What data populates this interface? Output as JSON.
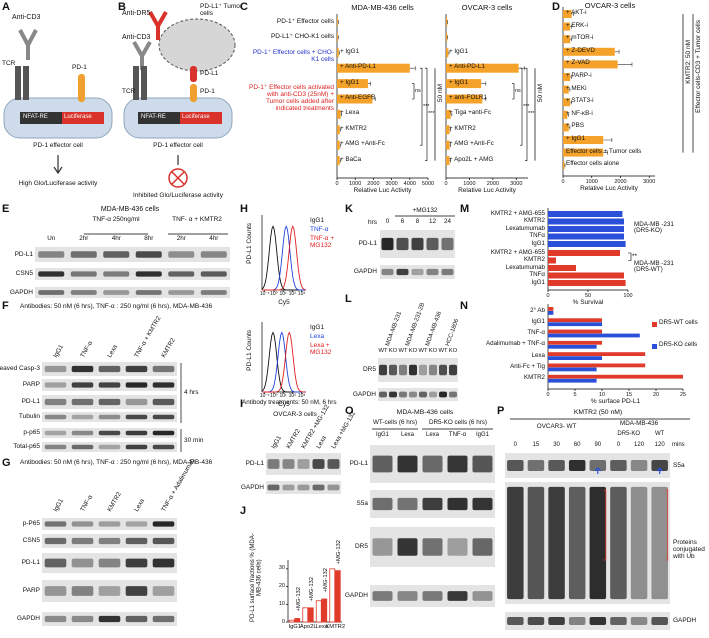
{
  "A": {
    "letter": "A",
    "anti_cd3": "Anti-CD3",
    "tcr": "TCR",
    "pd1": "PD-1",
    "nfat": "NFAT-RE",
    "luciferase": "Luciferase",
    "cell": "PD-1 effector cell",
    "result": "High Glo/Luciferase activity"
  },
  "B": {
    "letter": "B",
    "anti_dr5": "Anti-DR5",
    "tumor": "PD-L1⁺ Tumor cells",
    "anti_cd3": "Anti-CD3",
    "tcr": "TCR",
    "pdl1": "PD-L1",
    "pd1": "PD-1",
    "nfat": "NFAT-RE",
    "luciferase": "Luciferase",
    "cell": "PD-1 effector cell",
    "result": "Inhibited Glo/Luciferase activity"
  },
  "C": {
    "letter": "C",
    "row_labels": [
      "PD-1⁺ Effector cells",
      "PD-L1⁺ CHO-K1 cells",
      "PD-1⁺ Effector cells + CHO-K1 cells",
      "PD-1⁺ Effector cells activated with anti-CD3 (25nM) + Tumor cells added after indicated treatments"
    ],
    "charts": [
      {
        "title": "MDA-MB-436 cells",
        "categories": [
          null,
          null,
          "+ IgG1",
          "+ Anti-PD-L1",
          "+ IgG1",
          "+ Anti-EGFR",
          "+ Lexa",
          "+ KMTR2",
          "+ AMG +Anti-Fc",
          "+ BaCa"
        ],
        "values": [
          50,
          50,
          100,
          4000,
          1700,
          1950,
          200,
          150,
          150,
          150
        ],
        "errors": [
          20,
          20,
          30,
          300,
          150,
          150,
          50,
          40,
          40,
          40
        ],
        "color": "#f5a22a",
        "xlim": [
          0,
          5000
        ],
        "xticks": [
          0,
          1000,
          2000,
          3000,
          4000,
          5000
        ],
        "xlabel": "Relative Luc Activity",
        "dose": "50 nM",
        "annotations": [
          "ns",
          "***",
          "***"
        ]
      },
      {
        "title": "OVCAR-3 cells",
        "categories": [
          null,
          null,
          "+ IgG1",
          "+ Anti-PD-L1",
          "+ IgG1",
          "+ anti-FOLR1",
          "+ Tiga +anti-Fc",
          "+ KMTR2",
          "+ AMG +Anti-Fc",
          "+ Apo2L + AMG"
        ],
        "values": [
          50,
          50,
          100,
          3100,
          1500,
          1550,
          200,
          150,
          150,
          150
        ],
        "errors": [
          20,
          20,
          30,
          250,
          200,
          150,
          50,
          40,
          40,
          40
        ],
        "color": "#f5a22a",
        "xlim": [
          0,
          3500
        ],
        "xticks": [
          0,
          1000,
          2000,
          3000
        ],
        "xlabel": "Relative Luc Activity",
        "dose": "50 nM",
        "annotations": [
          "ns",
          "***",
          "***"
        ]
      }
    ]
  },
  "D": {
    "letter": "D",
    "title": "OVCAR-3 cells",
    "categories": [
      "+ AKT-i",
      "+ ERK-i",
      "+ mTOR-i",
      "+ Z-DEVD",
      "+ Z-VAD",
      "+ PARP-i",
      "+ MEKi",
      "+ STAT3-i",
      "+ NF-κB-i",
      "+ PBS",
      "+ IgG1",
      "Effector cells + Tumor cells",
      "Effector cells alone"
    ],
    "values": [
      300,
      250,
      250,
      1800,
      1900,
      250,
      200,
      250,
      150,
      200,
      1400,
      1400,
      50
    ],
    "errors": [
      60,
      50,
      50,
      150,
      500,
      50,
      40,
      50,
      40,
      40,
      300,
      150,
      20
    ],
    "color": "#f5a22a",
    "xlim": [
      0,
      3200
    ],
    "xticks": [
      0,
      1000,
      2000,
      3000
    ],
    "xlabel": "Relative Luc Activity",
    "dose": "KMTR2: 50 nM",
    "group": "Effector cells-CD3 + Tumor cells"
  },
  "E": {
    "letter": "E",
    "title": "MDA-MB-436 cells",
    "groups": [
      "TNF-α 250ng/ml",
      "TNF- α + KMTR2"
    ],
    "lanes": [
      "Un",
      "2hr",
      "4hr",
      "8hr",
      "2hr",
      "4hr"
    ],
    "rows": [
      "PD-L1",
      "CSN5",
      "GAPDH"
    ]
  },
  "F": {
    "letter": "F",
    "header": "Antibodies:  50 nM (6 hrs), TNF-α : 250 ng/ml (6 hrs), MDA-MB-436",
    "lanes": [
      "IgG1",
      "TNF-α",
      "Lexa",
      "TNF-α + KMTR2",
      "KMTR2"
    ],
    "rows": [
      "Cleaved Casp-3",
      "PARP",
      "PD-L1",
      "Tubulin",
      "p-p65",
      "Total-p65"
    ],
    "times": [
      "4 hrs",
      "30 min"
    ]
  },
  "G": {
    "letter": "G",
    "header": "Antibodies: 50 nM (6 hrs), TNF-α : 250 ng/ml (6 hrs), MDA-MB-436",
    "lanes": [
      "IgG1",
      "TNF-α",
      "KMTR2",
      "Lexa",
      "TNF-α + Adalimumab"
    ],
    "rows": [
      "p-P65",
      "CSN5",
      "PD-L1",
      "PARP",
      "GAPDH"
    ]
  },
  "H": {
    "letter": "H",
    "ylabel": "PD-L1 Counts",
    "xlabel": "Cy5",
    "xticks": [
      {
        "value": 0.1,
        "label": "10⁻¹"
      },
      {
        "value": 1,
        "label": "10⁰"
      },
      {
        "value": 10,
        "label": "10¹"
      },
      {
        "value": 100,
        "label": "10²"
      },
      {
        "value": 1000,
        "label": "10³"
      }
    ],
    "plots": [
      {
        "legend": [
          {
            "name": "IgG1",
            "color": "#111111"
          },
          {
            "name": "TNF-α",
            "color": "#2244dd"
          },
          {
            "name": "TNF-α + MG132",
            "color": "#e02020"
          }
        ]
      },
      {
        "legend": [
          {
            "name": "IgG1",
            "color": "#111111"
          },
          {
            "name": "Lexa",
            "color": "#2244dd"
          },
          {
            "name": "Lexa + MG132",
            "color": "#e02020"
          }
        ]
      }
    ]
  },
  "I": {
    "letter": "I",
    "header": "Antibody treatments: 50 nM, 6 hrs",
    "title": "OVCAR-3 cells",
    "lanes": [
      "IgG1",
      "KMTR2",
      "KMTR2 +MG-132",
      "Lexa",
      "Lexa +MG-132"
    ],
    "rows": [
      "PD-L1",
      "GAPDH"
    ]
  },
  "J": {
    "letter": "J",
    "ylabel": "PD-L1 surface fractions % (MDA-MB-436 cells)",
    "categories": [
      "IgG1",
      "Apo2L",
      "Lexa",
      "KMTR2"
    ],
    "series": [
      {
        "values": [
          1,
          8,
          12,
          30
        ],
        "color": "#ffffff",
        "edge": "#e03a2a"
      },
      {
        "name": "+MG-132",
        "values": [
          2,
          8,
          13,
          29
        ],
        "color": "#e03a2a",
        "edge": "#e03a2a"
      }
    ],
    "ylim": [
      0,
      35
    ],
    "yticks": [
      0,
      10,
      20,
      30
    ]
  },
  "K": {
    "letter": "K",
    "treatment": "+MG132",
    "unit": "hrs",
    "lanes": [
      0,
      6,
      8,
      12,
      24
    ],
    "rows": [
      "PD-L1",
      "GAPDH"
    ]
  },
  "L": {
    "letter": "L",
    "cells": [
      "MDA-MB-231",
      "MDA-MB-231-2B",
      "MDA-MB-436",
      "HCC-1806"
    ],
    "lanes": [
      "WT",
      "KO",
      "WT",
      "KO",
      "WT",
      "KO",
      "WT",
      "KO"
    ],
    "rows": [
      "DR5",
      "GAPDH"
    ]
  },
  "M": {
    "letter": "M",
    "categories": [
      "KMTR2 + AMG-655",
      "KMTR2",
      "Lexatumumab",
      "TNFα",
      "IgG1"
    ],
    "series": [
      {
        "name": "MDA-MB -231 (DR5-KO)",
        "color": "#2a4fd8",
        "values": [
          93,
          95,
          95,
          95,
          97
        ]
      },
      {
        "name": "MDA-MB -231 (DR5-WT)",
        "color": "#e03a2a",
        "values": [
          90,
          10,
          35,
          95,
          97
        ]
      }
    ],
    "xlim": [
      0,
      100
    ],
    "xticks": [
      0,
      50,
      100
    ],
    "xlabel": "% Survival",
    "annotation": "**"
  },
  "N": {
    "letter": "N",
    "categories": [
      "2° Ab",
      "IgG1",
      "TNF-α",
      "Adalimumab + TNF-α",
      "Lexa",
      "Anti-Fc + Tig",
      "KMTR2"
    ],
    "series": [
      {
        "name": "DR5-WT cells",
        "color": "#e03a2a",
        "values": [
          1,
          10,
          10,
          10,
          18,
          18,
          25
        ]
      },
      {
        "name": "DR5-KO cells",
        "color": "#2a4fd8",
        "values": [
          1,
          10,
          17,
          9,
          10,
          9,
          9
        ]
      }
    ],
    "xlim": [
      0,
      25
    ],
    "xticks": [
      0,
      5,
      10,
      15,
      20,
      25
    ],
    "xlabel": "% surface PD-L1"
  },
  "O": {
    "letter": "O",
    "title": "MDA-MB-436 cells",
    "groups": [
      "WT-cells (6 hrs)",
      "DR5-KO cells (6 hrs)"
    ],
    "lanes": [
      "IgG1",
      "Lexa",
      "Lexa",
      "TNF-α",
      "IgG1"
    ],
    "rows": [
      "PD-L1",
      "S5a",
      "DR5",
      "GAPDH"
    ]
  },
  "P": {
    "letter": "P",
    "title": "KMTR2 (50 nM)",
    "groups": [
      "OVCAR3- WT",
      "MDA-MB-436"
    ],
    "subgroups": [
      "DR5-KO",
      "WT"
    ],
    "lanes": [
      0,
      15,
      30,
      60,
      90,
      0,
      120,
      120
    ],
    "unit": "mins",
    "rows": [
      "S5a",
      "Proteins conjugated with Ub",
      "GAPDH"
    ]
  }
}
